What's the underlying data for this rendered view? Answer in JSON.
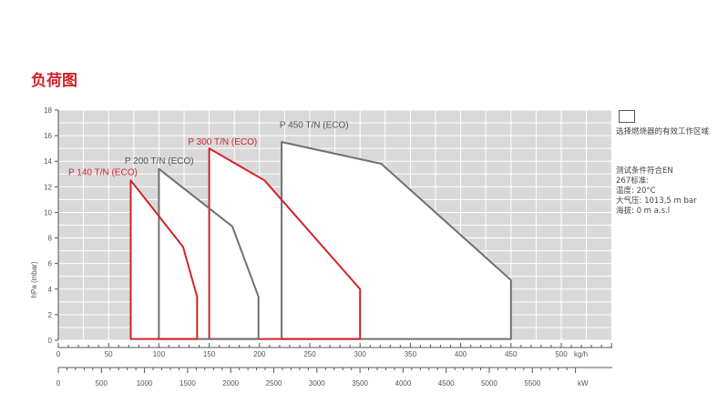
{
  "header": {
    "title": "负荷图"
  },
  "legend": {
    "text": "选择燃烧器的有效工作区域"
  },
  "notes": [
    "测试条件符合EN",
    "267标准:",
    "温度: 20°C",
    "大气压: 1013,5 m bar",
    "海拔: 0 m a.s.l"
  ],
  "colors": {
    "red": "#d2232a",
    "gray": "#707070",
    "plot_bg": "#d9d9d9",
    "grid": "#ffffff"
  },
  "chart_data": {
    "type": "area",
    "ylabel": "hPa (mbar)",
    "y_ticks": [
      "0",
      "2",
      "4",
      "6",
      "8",
      "10",
      "12",
      "14",
      "16",
      "18"
    ],
    "ylim": [
      0,
      18
    ],
    "x_top": {
      "unit": "kg/h",
      "range": [
        0,
        500
      ],
      "tick_labels": [
        "0",
        "50",
        "100",
        "150",
        "200",
        "250",
        "300",
        "350",
        "400",
        "450",
        "500"
      ]
    },
    "x_bottom": {
      "unit": "kW",
      "range": [
        0,
        5900
      ],
      "tick_labels": [
        "0",
        "500",
        "1000",
        "1500",
        "2000",
        "2500",
        "3000",
        "3500",
        "4000",
        "4500",
        "5000",
        "5500"
      ]
    },
    "grid": true,
    "series": [
      {
        "name": "P 450 T/N (ECO)",
        "color": "gray",
        "label_at": [
          220,
          16.6
        ],
        "points": [
          [
            222,
            0.1
          ],
          [
            222,
            15.5
          ],
          [
            321,
            13.8
          ],
          [
            450,
            4.7
          ],
          [
            450,
            0.1
          ]
        ]
      },
      {
        "name": "P 300 T/N (ECO)",
        "color": "red",
        "label_at": [
          129,
          15.3
        ],
        "points": [
          [
            150,
            0.1
          ],
          [
            150,
            15.0
          ],
          [
            205,
            12.5
          ],
          [
            300,
            4.0
          ],
          [
            300,
            0.1
          ]
        ]
      },
      {
        "name": "P 200 T/N (ECO)",
        "color": "gray",
        "label_at": [
          66,
          13.8
        ],
        "points": [
          [
            100,
            0.1
          ],
          [
            100,
            13.4
          ],
          [
            173,
            8.9
          ],
          [
            199,
            3.4
          ],
          [
            199,
            0.1
          ]
        ]
      },
      {
        "name": "P 140 T/N (ECO)",
        "color": "red",
        "label_at": [
          10,
          12.9
        ],
        "points": [
          [
            72,
            0.1
          ],
          [
            72,
            12.5
          ],
          [
            124,
            7.3
          ],
          [
            138,
            3.4
          ],
          [
            138,
            0.1
          ]
        ]
      }
    ]
  }
}
